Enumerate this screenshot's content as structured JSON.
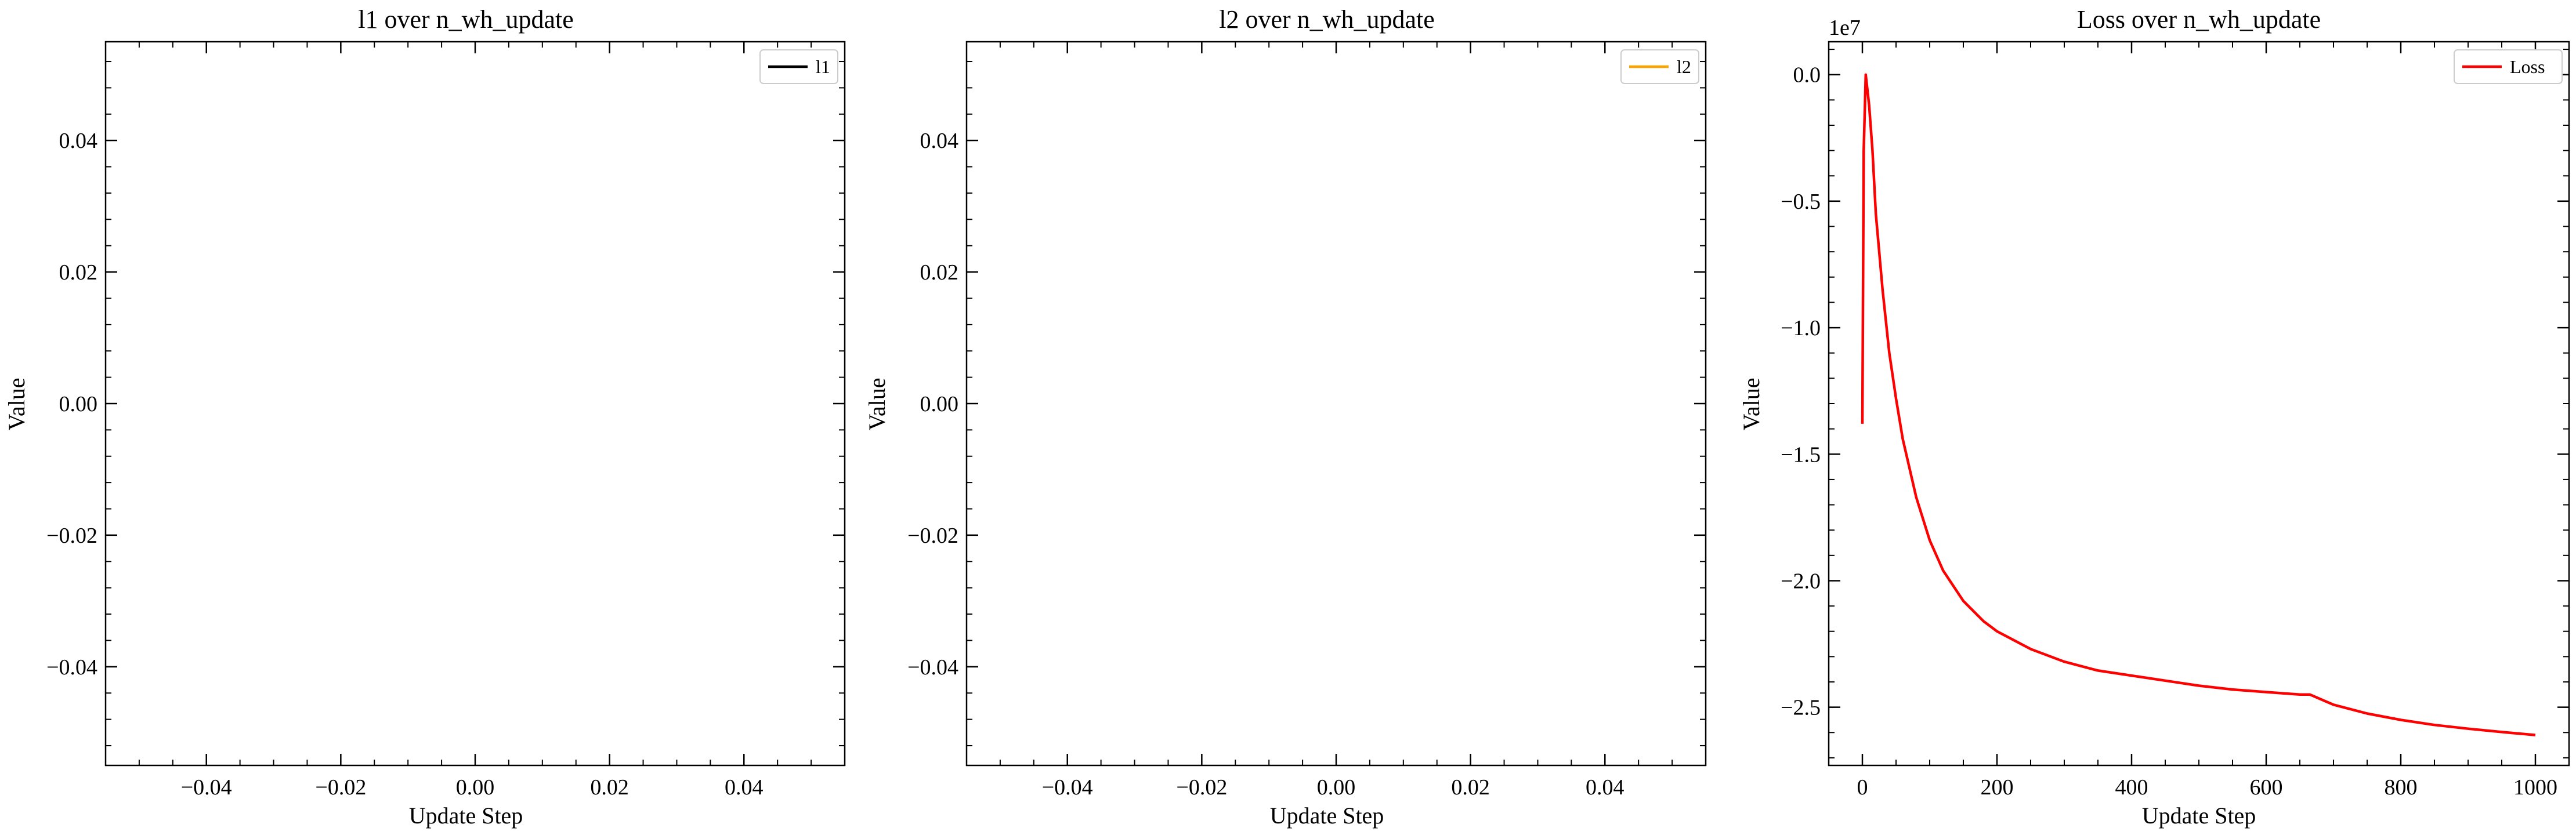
{
  "chart_data": [
    {
      "type": "line",
      "title": "l1 over n_wh_update",
      "xlabel": "Update Step",
      "ylabel": "Value",
      "xlim": [
        -0.055,
        0.055
      ],
      "ylim": [
        -0.055,
        0.055
      ],
      "xticks": [
        -0.04,
        -0.02,
        0.0,
        0.02,
        0.04
      ],
      "yticks": [
        -0.04,
        -0.02,
        0.0,
        0.02,
        0.04
      ],
      "xtick_labels": [
        "−0.04",
        "−0.02",
        "0.00",
        "0.02",
        "0.04"
      ],
      "ytick_labels": [
        "−0.04",
        "−0.02",
        "0.00",
        "0.02",
        "0.04"
      ],
      "legend": "top-right",
      "grid": false,
      "series": [
        {
          "name": "l1",
          "color": "#000000",
          "x": [],
          "y": []
        }
      ]
    },
    {
      "type": "line",
      "title": "l2 over n_wh_update",
      "xlabel": "Update Step",
      "ylabel": "Value",
      "xlim": [
        -0.055,
        0.055
      ],
      "ylim": [
        -0.055,
        0.055
      ],
      "xticks": [
        -0.04,
        -0.02,
        0.0,
        0.02,
        0.04
      ],
      "yticks": [
        -0.04,
        -0.02,
        0.0,
        0.02,
        0.04
      ],
      "xtick_labels": [
        "−0.04",
        "−0.02",
        "0.00",
        "0.02",
        "0.04"
      ],
      "ytick_labels": [
        "−0.04",
        "−0.02",
        "0.00",
        "0.02",
        "0.04"
      ],
      "legend": "top-right",
      "grid": false,
      "series": [
        {
          "name": "l2",
          "color": "#ffa500",
          "x": [],
          "y": []
        }
      ]
    },
    {
      "type": "line",
      "title": "Loss over n_wh_update",
      "xlabel": "Update Step",
      "ylabel": "Value",
      "offset_text": "1e7",
      "xlim": [
        -50,
        1050
      ],
      "ylim": [
        -2.73,
        0.13
      ],
      "xticks": [
        0,
        200,
        400,
        600,
        800,
        1000
      ],
      "yticks": [
        0.0,
        -0.5,
        -1.0,
        -1.5,
        -2.0,
        -2.5
      ],
      "xtick_labels": [
        "0",
        "200",
        "400",
        "600",
        "800",
        "1000"
      ],
      "ytick_labels": [
        "0.0",
        "−0.5",
        "−1.0",
        "−1.5",
        "−2.0",
        "−2.5"
      ],
      "legend": "top-right",
      "grid": false,
      "series": [
        {
          "name": "Loss",
          "color": "#ff0000",
          "x": [
            0,
            2,
            5,
            10,
            15,
            20,
            30,
            40,
            50,
            60,
            80,
            100,
            120,
            150,
            180,
            200,
            250,
            300,
            350,
            400,
            450,
            500,
            550,
            600,
            650,
            665,
            700,
            750,
            800,
            850,
            900,
            950,
            1000
          ],
          "y": [
            -1.38,
            -0.3,
            0.0,
            -0.12,
            -0.3,
            -0.55,
            -0.85,
            -1.1,
            -1.28,
            -1.44,
            -1.67,
            -1.84,
            -1.96,
            -2.08,
            -2.16,
            -2.2,
            -2.27,
            -2.32,
            -2.355,
            -2.375,
            -2.395,
            -2.415,
            -2.43,
            -2.44,
            -2.45,
            -2.45,
            -2.49,
            -2.525,
            -2.55,
            -2.57,
            -2.585,
            -2.598,
            -2.61
          ]
        }
      ]
    }
  ]
}
